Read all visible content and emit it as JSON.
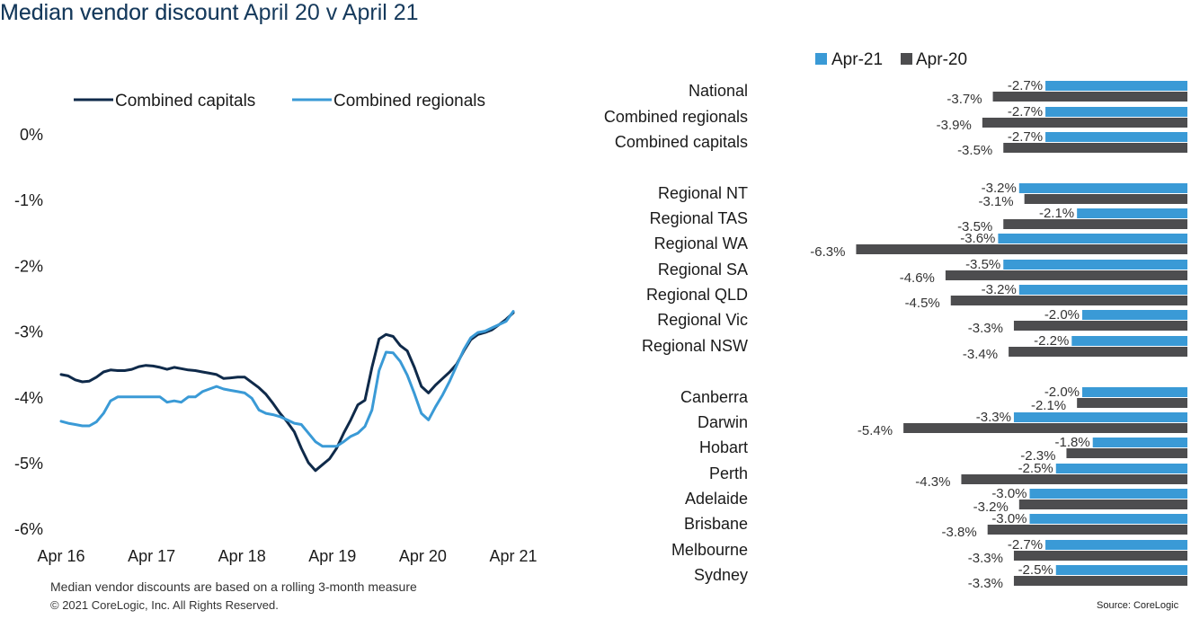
{
  "page": {
    "left_title": "Median vendor discount",
    "right_title": "Median vendor discount April 20 v April 21",
    "footnote": "Median vendor discounts are based on a rolling 3-month measure",
    "copyright": "© 2021 CoreLogic,  Inc. All Rights  Reserved.",
    "source": "Source: CoreLogic"
  },
  "colors": {
    "capitals": "#0f2a4a",
    "regionals": "#3a9ad6",
    "apr21": "#3a9ad6",
    "apr20": "#4d4d4f"
  },
  "chart_data": [
    {
      "type": "line",
      "title": "Median vendor discount",
      "xlabel": "",
      "ylabel": "",
      "ylim": [
        -6,
        0
      ],
      "yticks": [
        0,
        -1,
        -2,
        -3,
        -4,
        -5,
        -6
      ],
      "ytick_labels": [
        "0%",
        "-1%",
        "-2%",
        "-3%",
        "-4%",
        "-5%",
        "-6%"
      ],
      "xtick_labels": [
        "Apr 16",
        "Apr 17",
        "Apr 18",
        "Apr 19",
        "Apr 20",
        "Apr 21"
      ],
      "x_start": "2016-04",
      "x_end": "2021-04",
      "legend": "top",
      "grid": false,
      "series": [
        {
          "name": "Combined capitals",
          "values": [
            -3.66,
            -3.68,
            -3.74,
            -3.77,
            -3.76,
            -3.7,
            -3.62,
            -3.59,
            -3.6,
            -3.6,
            -3.58,
            -3.54,
            -3.52,
            -3.53,
            -3.55,
            -3.58,
            -3.55,
            -3.57,
            -3.59,
            -3.6,
            -3.62,
            -3.64,
            -3.66,
            -3.72,
            -3.71,
            -3.7,
            -3.7,
            -3.78,
            -3.86,
            -3.96,
            -4.1,
            -4.25,
            -4.38,
            -4.53,
            -4.78,
            -5.0,
            -5.12,
            -5.03,
            -4.94,
            -4.78,
            -4.55,
            -4.35,
            -4.12,
            -4.05,
            -3.55,
            -3.12,
            -3.05,
            -3.08,
            -3.22,
            -3.3,
            -3.55,
            -3.84,
            -3.94,
            -3.82,
            -3.72,
            -3.62,
            -3.5,
            -3.3,
            -3.13,
            -3.05,
            -3.02,
            -2.98,
            -2.9,
            -2.82,
            -2.72
          ]
        },
        {
          "name": "Combined regionals",
          "values": [
            -4.37,
            -4.4,
            -4.42,
            -4.44,
            -4.44,
            -4.38,
            -4.25,
            -4.06,
            -4.0,
            -4.0,
            -4.0,
            -4.0,
            -4.0,
            -4.0,
            -4.0,
            -4.08,
            -4.06,
            -4.08,
            -4.0,
            -4.0,
            -3.92,
            -3.88,
            -3.84,
            -3.88,
            -3.9,
            -3.92,
            -3.94,
            -4.02,
            -4.2,
            -4.25,
            -4.27,
            -4.3,
            -4.35,
            -4.4,
            -4.42,
            -4.55,
            -4.68,
            -4.75,
            -4.75,
            -4.75,
            -4.68,
            -4.6,
            -4.55,
            -4.45,
            -4.2,
            -3.6,
            -3.32,
            -3.33,
            -3.46,
            -3.67,
            -3.95,
            -4.25,
            -4.35,
            -4.15,
            -3.97,
            -3.76,
            -3.52,
            -3.28,
            -3.1,
            -3.02,
            -3.0,
            -2.95,
            -2.9,
            -2.85,
            -2.7
          ]
        }
      ]
    },
    {
      "type": "bar",
      "orientation": "horizontal",
      "title": "Median vendor discount April 20 v April 21",
      "legend": "top",
      "series_names": [
        "Apr-21",
        "Apr-20"
      ],
      "categories": [
        "National",
        "Combined regionals",
        "Combined capitals",
        "Regional NT",
        "Regional TAS",
        "Regional WA",
        "Regional SA",
        "Regional QLD",
        "Regional Vic",
        "Regional NSW",
        "Canberra",
        "Darwin",
        "Hobart",
        "Perth",
        "Adelaide",
        "Brisbane",
        "Melbourne",
        "Sydney"
      ],
      "groups": [
        3,
        7,
        8
      ],
      "series": [
        {
          "name": "Apr-21",
          "values": [
            -2.7,
            -2.7,
            -2.7,
            -3.2,
            -2.1,
            -3.6,
            -3.5,
            -3.2,
            -2.0,
            -2.2,
            -2.0,
            -3.3,
            -1.8,
            -2.5,
            -3.0,
            -3.0,
            -2.7,
            -2.5
          ]
        },
        {
          "name": "Apr-20",
          "values": [
            -3.7,
            -3.9,
            -3.5,
            -3.1,
            -3.5,
            -6.3,
            -4.6,
            -4.5,
            -3.3,
            -3.4,
            -2.1,
            -5.4,
            -2.3,
            -4.3,
            -3.2,
            -3.8,
            -3.3,
            -3.3
          ]
        }
      ],
      "value_labels": {
        "apr21": [
          "-2.7%",
          "-2.7%",
          "-2.7%",
          "-3.2%",
          "-2.1%",
          "-3.6%",
          "-3.5%",
          "-3.2%",
          "-2.0%",
          "-2.2%",
          "-2.0%",
          "-3.3%",
          "-1.8%",
          "-2.5%",
          "-3.0%",
          "-3.0%",
          "-2.7%",
          "-2.5%"
        ],
        "apr20": [
          "-3.7%",
          "-3.9%",
          "-3.5%",
          "-3.1%",
          "-3.5%",
          "-6.3%",
          "-4.6%",
          "-4.5%",
          "-3.3%",
          "-3.4%",
          "-2.1%",
          "-5.4%",
          "-2.3%",
          "-4.3%",
          "-3.2%",
          "-3.8%",
          "-3.3%",
          "-3.3%"
        ]
      }
    }
  ]
}
